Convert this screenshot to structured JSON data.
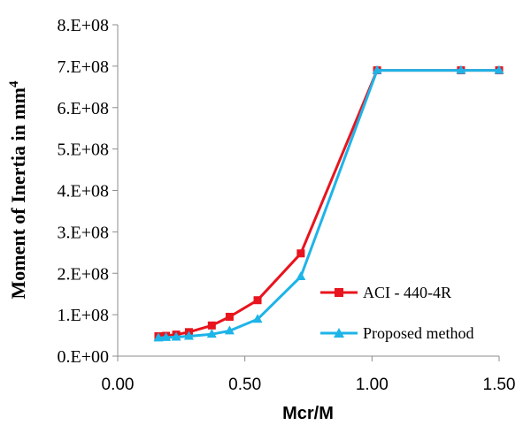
{
  "chart_data": {
    "type": "line",
    "title": "",
    "xlabel": "Mcr/M",
    "ylabel": "Moment of Inertia in mm",
    "ylabel_sup": "4",
    "xlim": [
      0,
      1.5
    ],
    "ylim": [
      0,
      800000000
    ],
    "x_ticks": [
      0,
      0.5,
      1.0,
      1.5
    ],
    "x_tick_labels": [
      "0.00",
      "0.50",
      "1.00",
      "1.50"
    ],
    "y_ticks": [
      0,
      100000000,
      200000000,
      300000000,
      400000000,
      500000000,
      600000000,
      700000000,
      800000000
    ],
    "y_tick_labels": [
      "0.E+00",
      "1.E+08",
      "2.E+08",
      "3.E+08",
      "4.E+08",
      "5.E+08",
      "6.E+08",
      "7.E+08",
      "8.E+08"
    ],
    "grid": false,
    "legend_position": "bottom-right",
    "series": [
      {
        "name": "ACI - 440-4R",
        "color": "#e8141e",
        "marker": "square",
        "x": [
          0.16,
          0.19,
          0.23,
          0.28,
          0.37,
          0.44,
          0.55,
          0.72,
          1.02,
          1.35,
          1.5
        ],
        "y": [
          48000000,
          49000000,
          52000000,
          58000000,
          74000000,
          95000000,
          135000000,
          248000000,
          690000000,
          690000000,
          690000000
        ]
      },
      {
        "name": "Proposed method",
        "color": "#1eb4e8",
        "marker": "triangle",
        "x": [
          0.16,
          0.19,
          0.23,
          0.28,
          0.37,
          0.44,
          0.55,
          0.72,
          1.02,
          1.35,
          1.5
        ],
        "y": [
          44000000,
          45000000,
          46000000,
          48000000,
          53000000,
          61000000,
          89000000,
          192000000,
          690000000,
          690000000,
          690000000
        ]
      }
    ]
  }
}
